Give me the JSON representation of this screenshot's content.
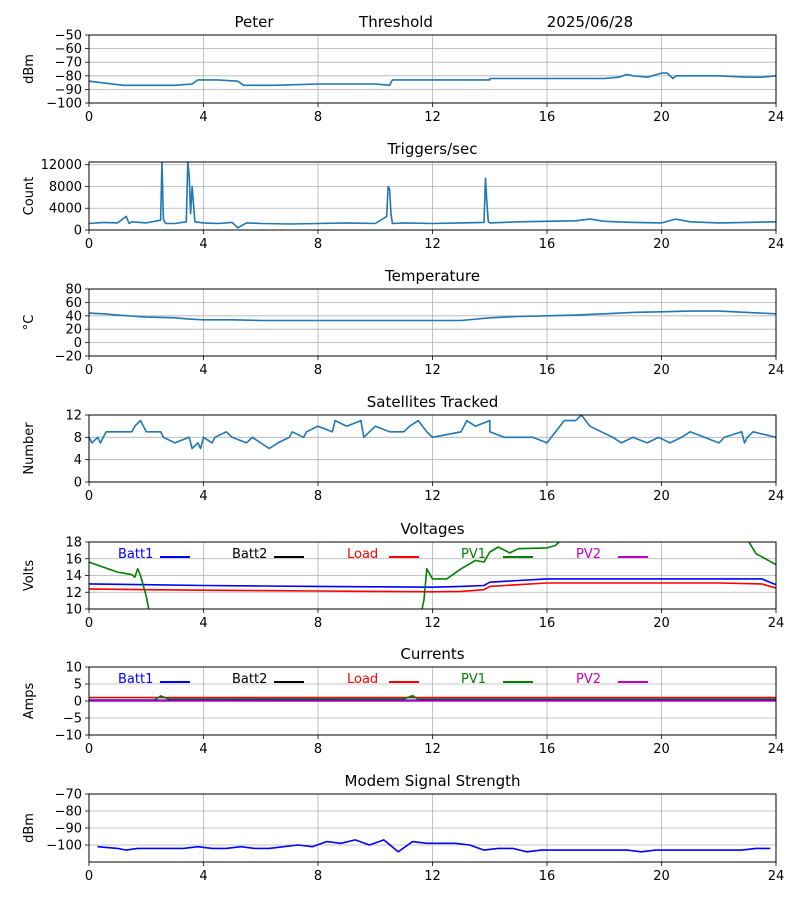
{
  "header": {
    "station": "Peter",
    "mode": "Threshold",
    "date": "2025/06/28"
  },
  "chart_data": [
    {
      "id": "threshold",
      "type": "line",
      "title": "",
      "ylabel": "dBm",
      "xlim": [
        0,
        24
      ],
      "ylim": [
        -100,
        -50
      ],
      "xticks": [
        "0",
        "4",
        "8",
        "12",
        "16",
        "20",
        "24"
      ],
      "yticks": [
        "−100",
        "−90",
        "−80",
        "−70",
        "−60",
        "−50"
      ],
      "ytick_values": [
        -100,
        -90,
        -80,
        -70,
        -60,
        -50
      ],
      "grid": true,
      "series": [
        {
          "color": "#1f77b4",
          "x": [
            0,
            0.4,
            1.2,
            2,
            3,
            3.6,
            3.8,
            4.5,
            5.2,
            5.4,
            6.5,
            8,
            9,
            10,
            10.5,
            10.6,
            11.5,
            12,
            13,
            14,
            14,
            15,
            16,
            17,
            18,
            18.5,
            18.8,
            19,
            19.5,
            20,
            20.2,
            20.4,
            20.5,
            21,
            22,
            23,
            23.5,
            24
          ],
          "y": [
            -84,
            -85,
            -87,
            -87,
            -87,
            -86,
            -83,
            -83,
            -84,
            -87,
            -87,
            -86,
            -86,
            -86,
            -87,
            -83,
            -83,
            -83,
            -83,
            -83,
            -82,
            -82,
            -82,
            -82,
            -82,
            -81,
            -79,
            -80,
            -81,
            -78,
            -78,
            -82,
            -80,
            -80,
            -80,
            -81,
            -81,
            -80
          ]
        }
      ]
    },
    {
      "id": "triggers",
      "type": "line",
      "title": "Triggers/sec",
      "ylabel": "Count",
      "xlim": [
        0,
        24
      ],
      "ylim": [
        0,
        12500
      ],
      "xticks": [
        "0",
        "4",
        "8",
        "12",
        "16",
        "20",
        "24"
      ],
      "yticks": [
        "0",
        "4000",
        "8000",
        "12000"
      ],
      "ytick_values": [
        0,
        4000,
        8000,
        12000
      ],
      "grid": true,
      "series": [
        {
          "color": "#1f77b4",
          "x": [
            0,
            0.5,
            1,
            1.3,
            1.4,
            1.5,
            2,
            2.5,
            2.55,
            2.6,
            2.65,
            2.7,
            3,
            3.4,
            3.45,
            3.5,
            3.55,
            3.6,
            3.7,
            4,
            4.5,
            5,
            5.2,
            5.5,
            6,
            7,
            8,
            9,
            10,
            10.4,
            10.45,
            10.5,
            10.55,
            10.6,
            11,
            12,
            13,
            13.8,
            13.85,
            13.9,
            13.95,
            14,
            15,
            16,
            17,
            17.5,
            18,
            19,
            20,
            20.5,
            21,
            22,
            23,
            24
          ],
          "y": [
            1200,
            1400,
            1300,
            2500,
            1200,
            1500,
            1300,
            1800,
            12500,
            2000,
            1400,
            1200,
            1200,
            1500,
            12500,
            10000,
            3000,
            8000,
            1500,
            1300,
            1200,
            1400,
            400,
            1300,
            1200,
            1100,
            1200,
            1300,
            1200,
            2500,
            8000,
            7500,
            3000,
            1200,
            1300,
            1200,
            1300,
            1400,
            9500,
            5000,
            1500,
            1300,
            1500,
            1600,
            1700,
            2000,
            1600,
            1400,
            1300,
            2000,
            1500,
            1300,
            1400,
            1500
          ]
        }
      ]
    },
    {
      "id": "temperature",
      "type": "line",
      "title": "Temperature",
      "ylabel": "°C",
      "xlim": [
        0,
        24
      ],
      "ylim": [
        -20,
        80
      ],
      "xticks": [
        "0",
        "4",
        "8",
        "12",
        "16",
        "20",
        "24"
      ],
      "yticks": [
        "−20",
        "0",
        "20",
        "40",
        "60",
        "80"
      ],
      "ytick_values": [
        -20,
        0,
        20,
        40,
        60,
        80
      ],
      "grid": true,
      "series": [
        {
          "color": "#1f77b4",
          "x": [
            0,
            0.5,
            1,
            2,
            3,
            3.5,
            4,
            5,
            6,
            8,
            10,
            12,
            13,
            14,
            15,
            16,
            17,
            18,
            19,
            20,
            21,
            22,
            23,
            24
          ],
          "y": [
            44,
            43,
            41,
            38,
            37,
            35,
            34,
            34,
            33,
            33,
            33,
            33,
            33,
            37,
            39,
            40,
            41,
            43,
            45,
            46,
            47,
            47,
            45,
            43
          ]
        }
      ]
    },
    {
      "id": "satellites",
      "type": "line",
      "title": "Satellites Tracked",
      "ylabel": "Number",
      "xlim": [
        0,
        24
      ],
      "ylim": [
        0,
        12
      ],
      "xticks": [
        "0",
        "4",
        "8",
        "12",
        "16",
        "20",
        "24"
      ],
      "yticks": [
        "0",
        "4",
        "8",
        "12"
      ],
      "ytick_values": [
        0,
        4,
        8,
        12
      ],
      "grid": true,
      "series": [
        {
          "color": "#1f77b4",
          "x": [
            0,
            0.1,
            0.3,
            0.4,
            0.5,
            0.6,
            1.5,
            1.6,
            1.8,
            1.9,
            2,
            2.5,
            2.6,
            3,
            3.5,
            3.6,
            3.8,
            3.9,
            4,
            4.3,
            4.4,
            4.8,
            5,
            5.5,
            5.7,
            6,
            6.3,
            6.6,
            7,
            7.1,
            7.5,
            7.6,
            8,
            8.5,
            8.6,
            9,
            9.5,
            9.6,
            10,
            10.5,
            11,
            11.2,
            11.5,
            11.8,
            12,
            13,
            13.2,
            13.5,
            14,
            14,
            14.5,
            15,
            15.5,
            16,
            16.3,
            16.6,
            17,
            17.2,
            17.5,
            17.9,
            18.3,
            18.6,
            19,
            19.5,
            19.9,
            20.3,
            20.7,
            21,
            21.5,
            22,
            22.2,
            22.8,
            22.9,
            23,
            23.2,
            24
          ],
          "y": [
            8,
            7,
            8,
            7,
            8,
            9,
            9,
            10,
            11,
            10,
            9,
            9,
            8,
            7,
            8,
            6,
            7,
            6,
            8,
            7,
            8,
            9,
            8,
            7,
            8,
            7,
            6,
            7,
            8,
            9,
            8,
            9,
            10,
            9,
            11,
            10,
            11,
            8,
            10,
            9,
            9,
            10,
            11,
            9,
            8,
            9,
            11,
            10,
            11,
            9,
            8,
            8,
            8,
            7,
            9,
            11,
            11,
            12,
            10,
            9,
            8,
            7,
            8,
            7,
            8,
            7,
            8,
            9,
            8,
            7,
            8,
            9,
            7,
            8,
            9,
            8
          ]
        }
      ]
    },
    {
      "id": "voltages",
      "type": "line",
      "title": "Voltages",
      "ylabel": "Volts",
      "xlim": [
        0,
        24
      ],
      "ylim": [
        10,
        18
      ],
      "xticks": [
        "0",
        "4",
        "8",
        "12",
        "16",
        "20",
        "24"
      ],
      "yticks": [
        "10",
        "12",
        "14",
        "16",
        "18"
      ],
      "ytick_values": [
        10,
        12,
        14,
        16,
        18
      ],
      "grid": true,
      "legend": [
        {
          "label": "Batt1",
          "color": "#0000ff"
        },
        {
          "label": "Batt2",
          "color": "#000000"
        },
        {
          "label": "Load",
          "color": "#ff0000"
        },
        {
          "label": "PV1",
          "color": "#008000"
        },
        {
          "label": "PV2",
          "color": "#bf00bf"
        }
      ],
      "series": [
        {
          "name": "Batt1",
          "color": "#0000ff",
          "x": [
            0,
            2,
            4,
            6,
            8,
            10,
            12,
            13,
            13.8,
            14,
            15,
            16,
            18,
            20,
            22,
            23.5,
            24
          ],
          "y": [
            13.0,
            12.9,
            12.8,
            12.75,
            12.7,
            12.65,
            12.6,
            12.7,
            12.8,
            13.2,
            13.4,
            13.6,
            13.6,
            13.6,
            13.6,
            13.6,
            12.9
          ]
        },
        {
          "name": "Load",
          "color": "#ff0000",
          "x": [
            0,
            2,
            4,
            6,
            8,
            10,
            12,
            13,
            13.8,
            14,
            15,
            16,
            18,
            20,
            22,
            23.5,
            24
          ],
          "y": [
            12.4,
            12.3,
            12.25,
            12.2,
            12.15,
            12.1,
            12.05,
            12.1,
            12.3,
            12.7,
            12.9,
            13.1,
            13.1,
            13.1,
            13.1,
            13.0,
            12.5
          ]
        },
        {
          "name": "PV1",
          "color": "#008000",
          "x": [
            0,
            0.5,
            1,
            1.5,
            1.6,
            1.7,
            1.8,
            2.0,
            2.2,
            11.5,
            11.7,
            11.8,
            12,
            12.5,
            13,
            13.5,
            13.8,
            14,
            14.3,
            14.7,
            15,
            16,
            16.3,
            16.5,
            23,
            23.3,
            24
          ],
          "y": [
            15.6,
            15.0,
            14.4,
            14.1,
            13.8,
            14.8,
            14.0,
            11.5,
            8,
            8,
            11,
            14.8,
            13.6,
            13.6,
            14.8,
            15.8,
            15.6,
            16.8,
            17.4,
            16.7,
            17.2,
            17.3,
            17.6,
            18.3,
            18.3,
            16.6,
            15.3
          ]
        }
      ]
    },
    {
      "id": "currents",
      "type": "line",
      "title": "Currents",
      "ylabel": "Amps",
      "xlim": [
        0,
        24
      ],
      "ylim": [
        -10,
        10
      ],
      "xticks": [
        "0",
        "4",
        "8",
        "12",
        "16",
        "20",
        "24"
      ],
      "yticks": [
        "−10",
        "−5",
        "0",
        "5",
        "10"
      ],
      "ytick_values": [
        -10,
        -5,
        0,
        5,
        10
      ],
      "grid": true,
      "legend": [
        {
          "label": "Batt1",
          "color": "#0000ff"
        },
        {
          "label": "Batt2",
          "color": "#000000"
        },
        {
          "label": "Load",
          "color": "#ff0000"
        },
        {
          "label": "PV1",
          "color": "#008000"
        },
        {
          "label": "PV2",
          "color": "#bf00bf"
        }
      ],
      "series": [
        {
          "name": "Load",
          "color": "#ff0000",
          "x": [
            0,
            24
          ],
          "y": [
            1.0,
            1.0
          ]
        },
        {
          "name": "PV1",
          "color": "#008000",
          "x": [
            0,
            2.3,
            2.5,
            2.8,
            11,
            11.3,
            11.5,
            24
          ],
          "y": [
            0.3,
            0.3,
            1.5,
            0.5,
            0.6,
            1.6,
            0.5,
            0.5
          ]
        },
        {
          "name": "Batt1",
          "color": "#0000ff",
          "x": [
            0,
            24
          ],
          "y": [
            0.2,
            0.2
          ]
        },
        {
          "name": "PV2",
          "color": "#bf00bf",
          "x": [
            0,
            24
          ],
          "y": [
            0,
            0
          ]
        }
      ]
    },
    {
      "id": "modem",
      "type": "line",
      "title": "Modem Signal Strength",
      "ylabel": "dBm",
      "xlim": [
        0,
        24
      ],
      "ylim": [
        -110,
        -70
      ],
      "xticks": [
        "0",
        "4",
        "8",
        "12",
        "16",
        "20",
        "24"
      ],
      "yticks": [
        "−100",
        "−90",
        "−80",
        "−70"
      ],
      "ytick_values": [
        -100,
        -90,
        -80,
        -70
      ],
      "grid": true,
      "series": [
        {
          "color": "#0000ff",
          "x": [
            0.3,
            1,
            1.3,
            1.7,
            2.5,
            3.3,
            3.8,
            4.3,
            4.8,
            5.3,
            5.8,
            6.3,
            6.8,
            7.3,
            7.8,
            8.3,
            8.8,
            9.3,
            9.8,
            10.3,
            10.8,
            11.3,
            11.8,
            12.3,
            12.8,
            13.3,
            13.8,
            14.3,
            14.8,
            15.3,
            15.8,
            16.3,
            17.3,
            18.3,
            18.8,
            19.3,
            19.8,
            20.3,
            21.3,
            22.3,
            22.8,
            23.3,
            23.8
          ],
          "y": [
            -101,
            -102,
            -103,
            -102,
            -102,
            -102,
            -101,
            -102,
            -102,
            -101,
            -102,
            -102,
            -101,
            -100,
            -101,
            -98,
            -99,
            -97,
            -100,
            -97,
            -104,
            -98,
            -99,
            -99,
            -99,
            -100,
            -103,
            -102,
            -102,
            -104,
            -103,
            -103,
            -103,
            -103,
            -103,
            -104,
            -103,
            -103,
            -103,
            -103,
            -103,
            -102,
            -102
          ]
        }
      ]
    }
  ]
}
